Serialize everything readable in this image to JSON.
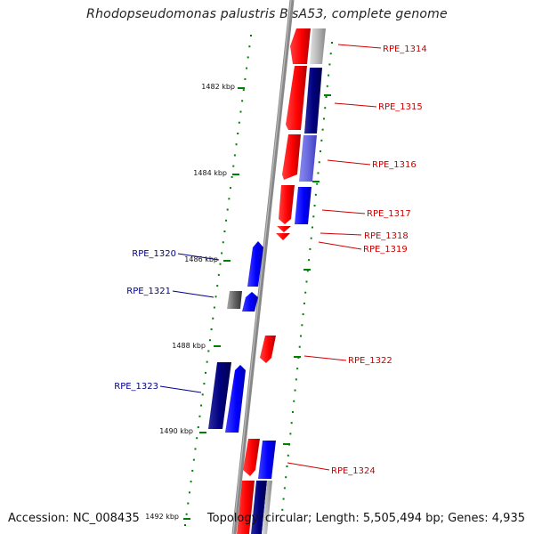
{
  "title": "Rhodopseudomonas palustris BisA53, complete genome",
  "footer": {
    "accession": "Accession: NC_008435",
    "summary": "Topology: circular; Length: 5,505,494 bp; Genes: 4,935"
  },
  "colors": {
    "forward_red": "#ff0000",
    "reverse_blue": "#0000ff",
    "navy": "#000080",
    "gray": "#b0b0b0",
    "scale_green": "#008000",
    "backbone": "#777777"
  },
  "scale_ticks": [
    "1482 kbp",
    "1484 kbp",
    "1486 kbp",
    "1488 kbp",
    "1490 kbp",
    "1492 kbp"
  ],
  "right_labels": [
    "RPE_1314",
    "RPE_1315",
    "RPE_1316",
    "RPE_1317",
    "RPE_1318",
    "RPE_1319",
    "RPE_1322",
    "RPE_1324"
  ],
  "left_labels": [
    "RPE_1320",
    "RPE_1321",
    "RPE_1323"
  ]
}
